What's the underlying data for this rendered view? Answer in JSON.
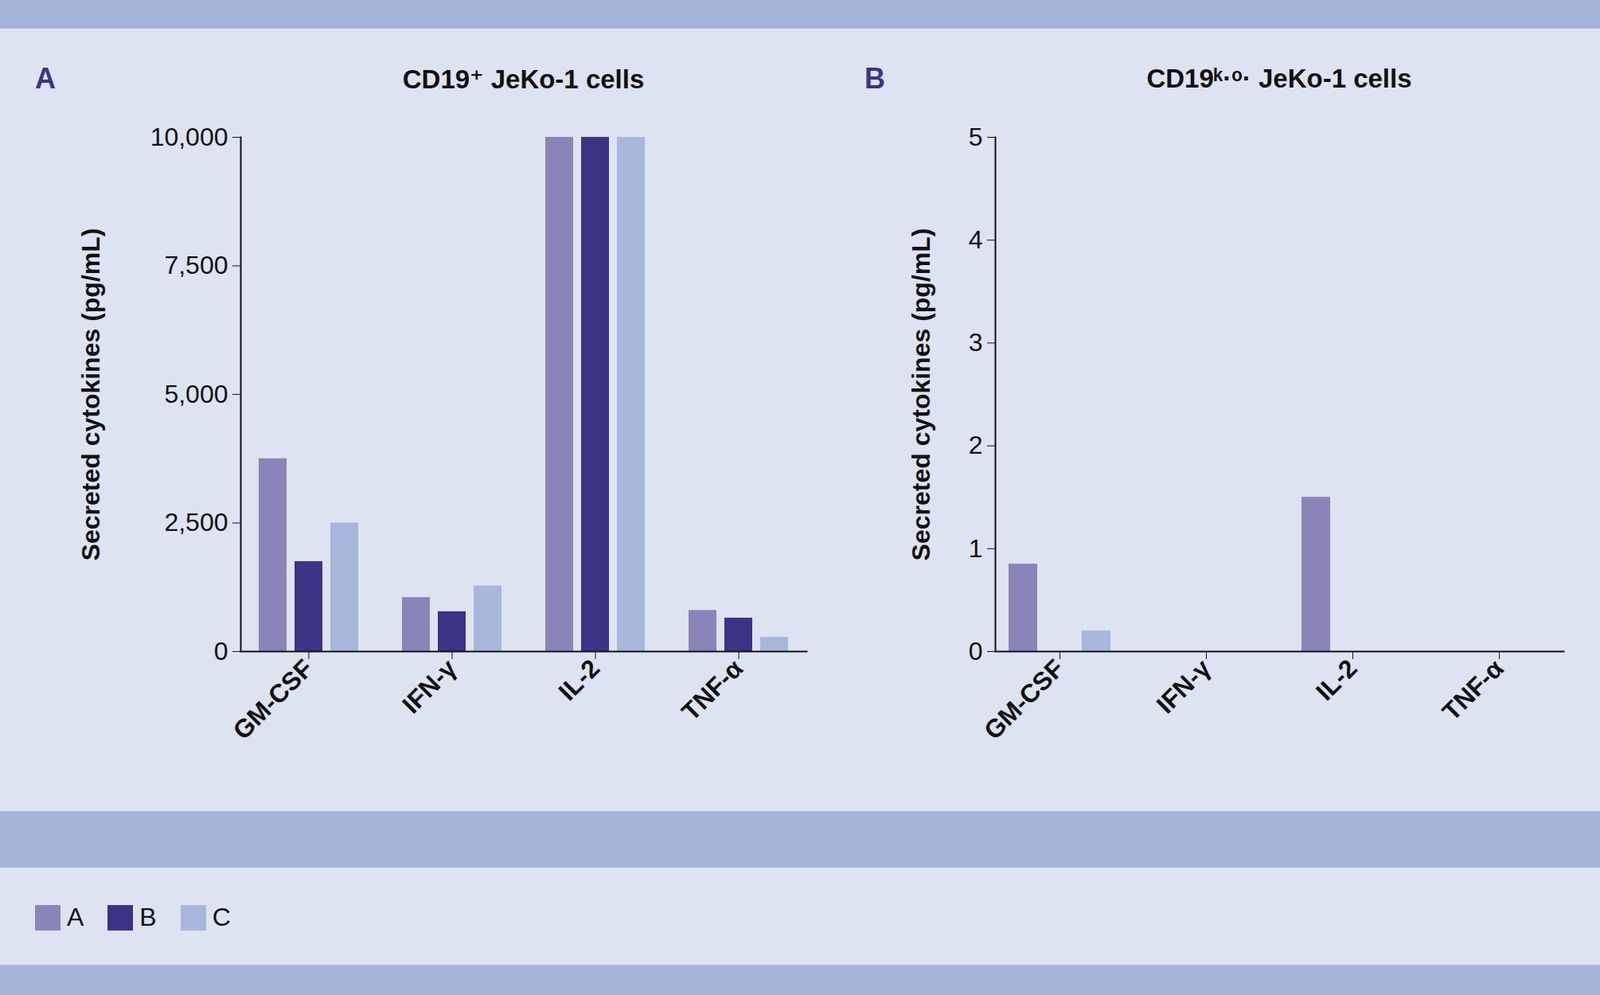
{
  "chart_data": [
    {
      "type": "bar",
      "panel_label": "A",
      "title": "CD19⁺ JeKo-1 cells",
      "y_label": "Secreted cytokines (pg/mL)",
      "categories": [
        "GM-CSF",
        "IFN-γ",
        "IL-2",
        "TNF-α"
      ],
      "series": [
        {
          "name": "A",
          "color": "#8a84b9",
          "values": [
            3750,
            1050,
            10000,
            800
          ]
        },
        {
          "name": "B",
          "color": "#3d3386",
          "values": [
            1750,
            775,
            10000,
            650
          ]
        },
        {
          "name": "C",
          "color": "#a8b6dc",
          "values": [
            2500,
            1275,
            10000,
            275
          ]
        }
      ],
      "ylim": [
        0,
        10000
      ],
      "yticks": [
        0,
        {
          "value": 2500,
          "label": "2,500"
        },
        {
          "value": 5000,
          "label": "5,000"
        },
        {
          "value": 7500,
          "label": "7,500"
        },
        {
          "value": 10000,
          "label": "10,000"
        }
      ],
      "legend": "bottom"
    },
    {
      "type": "bar",
      "panel_label": "B",
      "title": "CD19ᵏ·ᵒ· JeKo-1 cells",
      "y_label": "Secreted cytokines (pg/mL)",
      "categories": [
        "GM-CSF",
        "IFN-γ",
        "IL-2",
        "TNF-α"
      ],
      "series": [
        {
          "name": "A",
          "color": "#8a84b9",
          "values": [
            0.85,
            0,
            1.5,
            0
          ]
        },
        {
          "name": "B",
          "color": "#3d3386",
          "values": [
            0,
            0,
            0,
            0
          ]
        },
        {
          "name": "C",
          "color": "#a8b6dc",
          "values": [
            0.2,
            0,
            0,
            0
          ]
        }
      ],
      "ylim": [
        0,
        5
      ],
      "yticks": [
        0,
        1,
        2,
        3,
        4,
        5
      ],
      "legend": "bottom"
    }
  ]
}
